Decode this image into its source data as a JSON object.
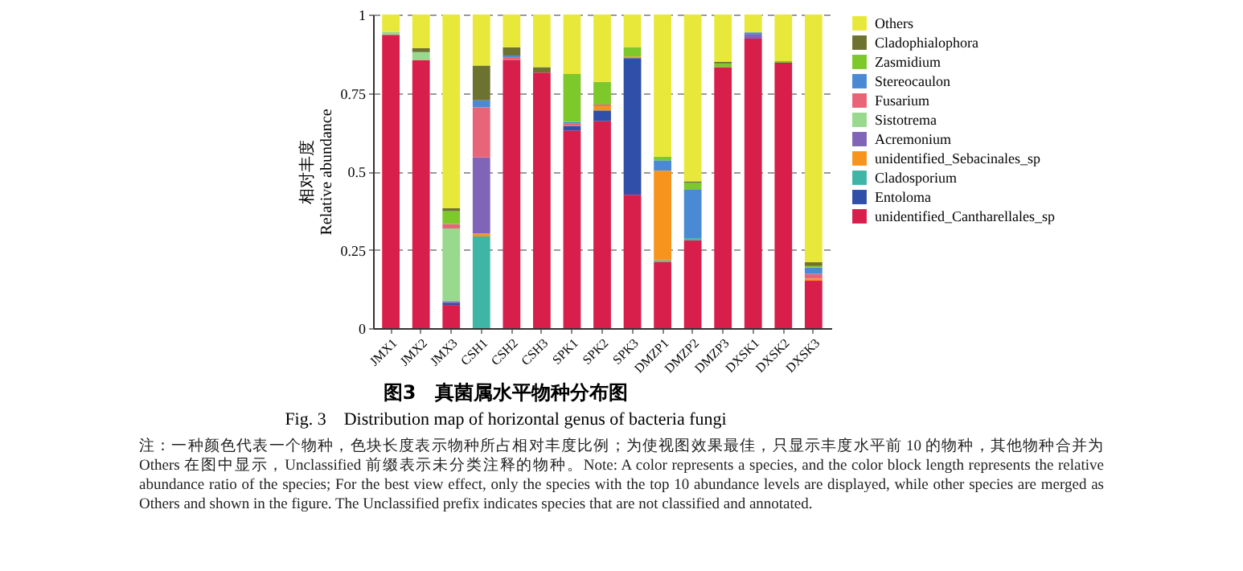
{
  "chart_data": {
    "type": "bar",
    "stacked": true,
    "title": "图3　真菌属水平物种分布图",
    "subtitle": "Fig. 3　Distribution map of horizontal genus of bacteria fungi",
    "ylabel": "相对丰度\nRelative abundance",
    "annotations": [
      "注：一种颜色代表一个物种，色块长度表示物种所占相对丰度比例；为使视图效果最佳，只显示丰度水平前 10 的物种，其他物种合并为 Others 在图中显示，Unclassified 前缀表示未分类注释的物种。Note: A color represents a species, and the color block length represents the relative abundance ratio of the species; For the best view effect, only the species with the top 10 abundance levels are displayed, while other species are merged as Others and shown in the figure. The Unclassified prefix indicates species that are not classified and annotated."
    ],
    "categories": [
      "JMX1",
      "JMX2",
      "JMX3",
      "CSH1",
      "CSH2",
      "CSH3",
      "SPK1",
      "SPK2",
      "SPK3",
      "DMZP1",
      "DMZP2",
      "DMZP3",
      "DXSK1",
      "DXSK2",
      "DXSK3"
    ],
    "ylim": [
      0,
      1
    ],
    "yticks": [
      0,
      0.25,
      0.5,
      0.75,
      1
    ],
    "grid": "y",
    "legend": "right",
    "series": [
      {
        "name": "unidentified_Cantharellales_sp",
        "color": "#d81e4a",
        "values": [
          0.935,
          0.854,
          0.074,
          0,
          0.854,
          0.815,
          0.63,
          0.66,
          0.425,
          0.211,
          0.28,
          0.832,
          0.923,
          0.846,
          0.151
        ]
      },
      {
        "name": "Entoloma",
        "color": "#2f4fa8",
        "values": [
          0,
          0,
          0.007,
          0,
          0,
          0,
          0.014,
          0.034,
          0.436,
          0,
          0,
          0,
          0,
          0,
          0
        ]
      },
      {
        "name": "Cladosporium",
        "color": "#3fb5a5",
        "values": [
          0,
          0,
          0,
          0.292,
          0,
          0,
          0,
          0,
          0,
          0.005,
          0.007,
          0,
          0,
          0,
          0
        ]
      },
      {
        "name": "unidentified_Sebacinales_sp",
        "color": "#f7941d",
        "values": [
          0,
          0,
          0,
          0.009,
          0,
          0,
          0,
          0.014,
          0.005,
          0.286,
          0,
          0,
          0,
          0,
          0.007
        ]
      },
      {
        "name": "Acremonium",
        "color": "#8064b8",
        "values": [
          0,
          0,
          0.005,
          0.243,
          0,
          0,
          0,
          0,
          0,
          0,
          0,
          0,
          0.015,
          0,
          0
        ]
      },
      {
        "name": "Sistotrema",
        "color": "#98d98e",
        "values": [
          0.01,
          0.026,
          0.232,
          0,
          0,
          0,
          0,
          0,
          0,
          0,
          0,
          0,
          0,
          0,
          0
        ]
      },
      {
        "name": "Fusarium",
        "color": "#e86478",
        "values": [
          0,
          0,
          0.014,
          0.16,
          0.01,
          0,
          0.008,
          0.005,
          0,
          0,
          0,
          0,
          0,
          0,
          0.015
        ]
      },
      {
        "name": "Stereocaulon",
        "color": "#4a8ad4",
        "values": [
          0,
          0,
          0,
          0.022,
          0.005,
          0,
          0.005,
          0,
          0,
          0.033,
          0.154,
          0,
          0.005,
          0,
          0.02
        ]
      },
      {
        "name": "Zasmidium",
        "color": "#7dc82a",
        "values": [
          0,
          0,
          0.041,
          0,
          0,
          0,
          0.153,
          0.072,
          0.03,
          0.012,
          0.022,
          0.012,
          0,
          0.005,
          0.005
        ]
      },
      {
        "name": "Cladophialophora",
        "color": "#6d7230",
        "values": [
          0,
          0.012,
          0.009,
          0.111,
          0.026,
          0.017,
          0,
          0,
          0,
          0,
          0.005,
          0.005,
          0,
          0,
          0.012
        ]
      },
      {
        "name": "Others",
        "color": "#e8e83a",
        "values": [
          0.055,
          0.108,
          0.618,
          0.163,
          0.105,
          0.168,
          0.19,
          0.215,
          0.104,
          0.453,
          0.532,
          0.151,
          0.057,
          0.149,
          0.79
        ]
      }
    ]
  }
}
